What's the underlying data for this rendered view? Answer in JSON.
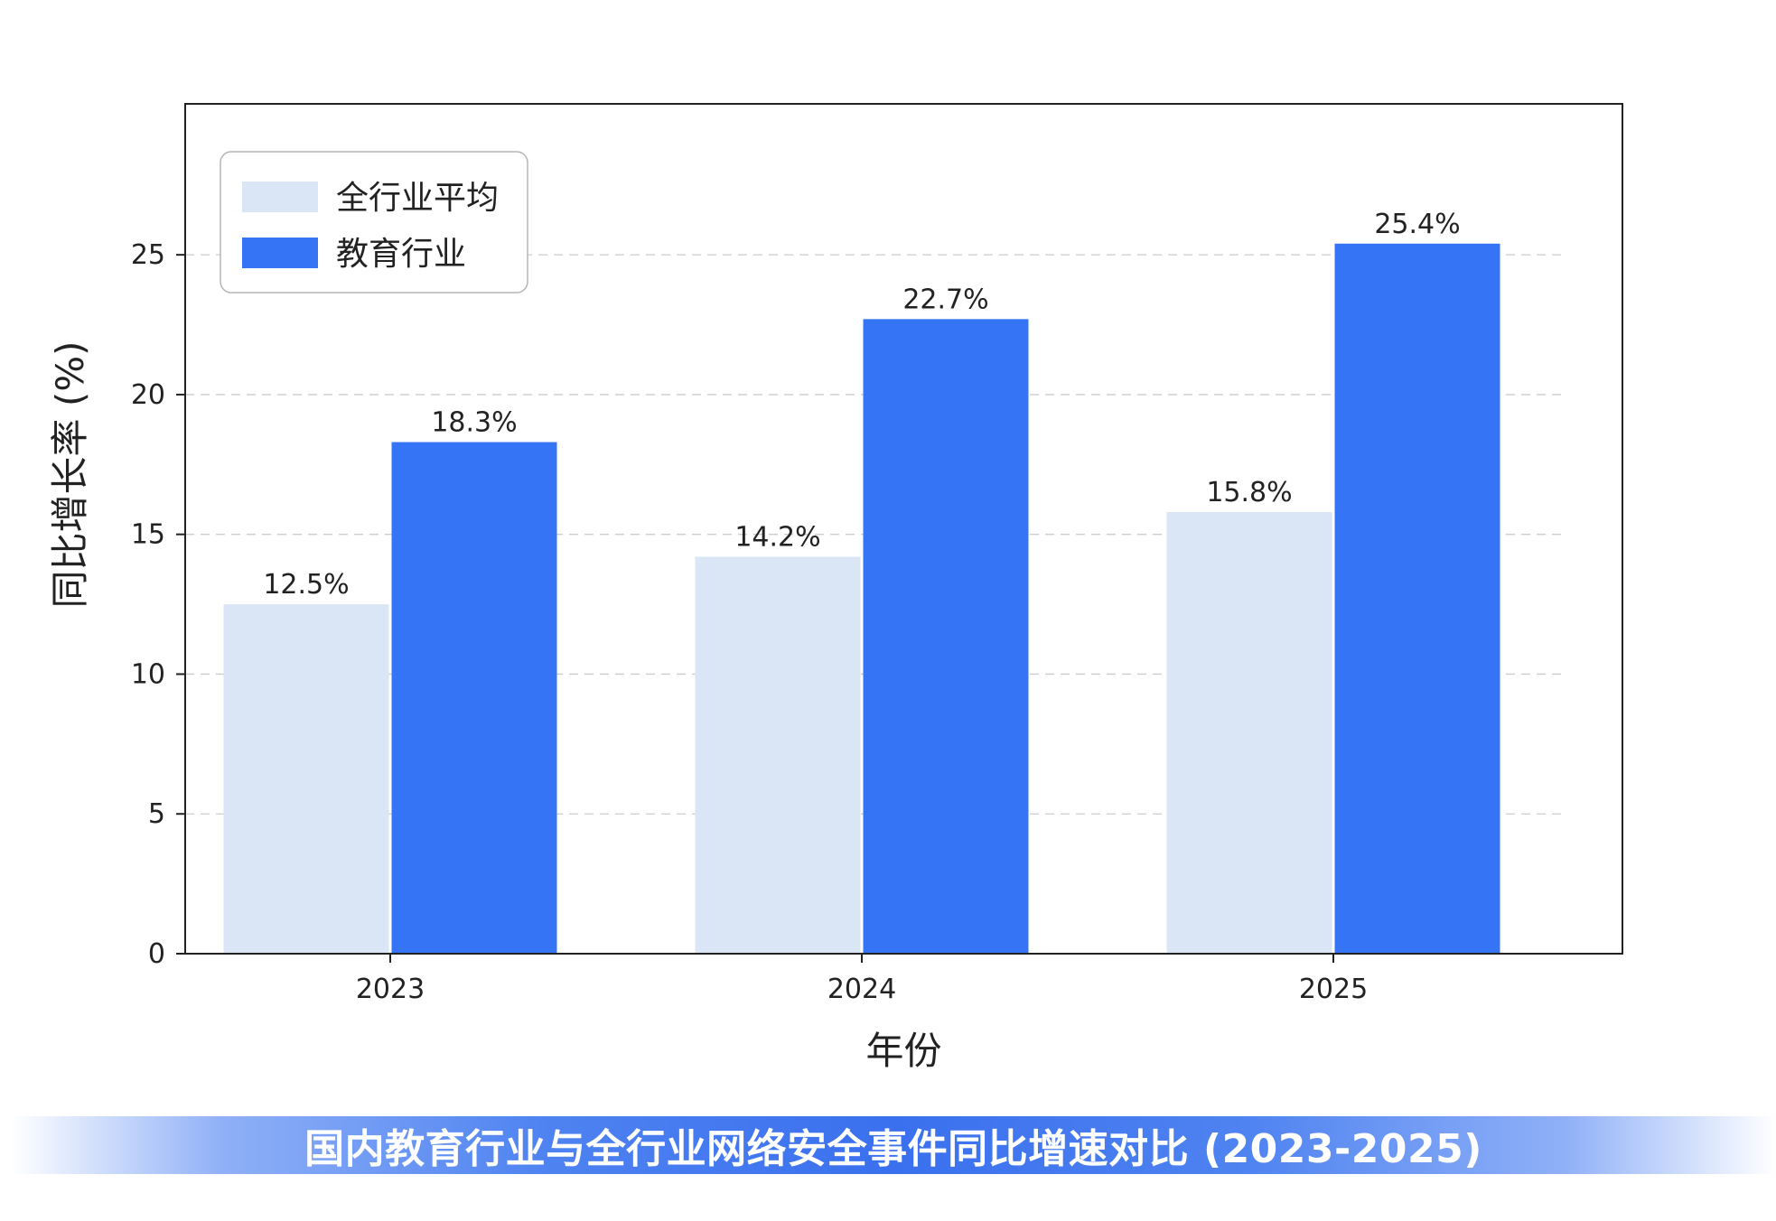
{
  "chart_data": {
    "type": "bar",
    "title": "国内教育行业与全行业网络安全事件同比增速对比 (2023-2025)",
    "xlabel": "年份",
    "ylabel": "同比增长率 (%)",
    "categories": [
      "2023",
      "2024",
      "2025"
    ],
    "series": [
      {
        "name": "全行业平均",
        "values": [
          12.5,
          14.2,
          15.8
        ],
        "labels": [
          "12.5%",
          "14.2%",
          "15.8%"
        ],
        "color": "#dae6f5"
      },
      {
        "name": "教育行业",
        "values": [
          18.3,
          22.7,
          25.4
        ],
        "labels": [
          "18.3%",
          "22.7%",
          "25.4%"
        ],
        "color": "#3574f4"
      }
    ],
    "ylim": [
      0,
      30.4
    ],
    "yticks": [
      0,
      5,
      10,
      15,
      20,
      25
    ],
    "ytick_labels": [
      "0",
      "5",
      "10",
      "15",
      "20",
      "25"
    ],
    "grid": "y-dashed",
    "legend": "top-left"
  }
}
